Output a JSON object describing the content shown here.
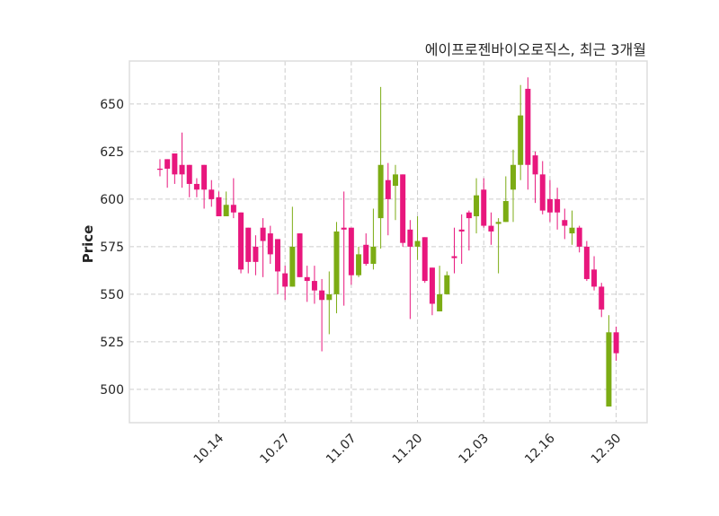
{
  "chart_data": {
    "type": "candlestick",
    "title": "에이프로젠바이오로직스, 최근 3개월",
    "xlabel": "",
    "ylabel": "Price",
    "ylim": [
      482.5,
      672.6
    ],
    "xlim": [
      -4.15,
      66.2
    ],
    "grid": true,
    "yticks": [
      500,
      525,
      550,
      575,
      600,
      625,
      650
    ],
    "xticks": [
      {
        "index": 8,
        "label": "10.14"
      },
      {
        "index": 17,
        "label": "10.27"
      },
      {
        "index": 26,
        "label": "11.07"
      },
      {
        "index": 35,
        "label": "11.20"
      },
      {
        "index": 44,
        "label": "12.03"
      },
      {
        "index": 53,
        "label": "12.16"
      },
      {
        "index": 62,
        "label": "12.30"
      }
    ],
    "colors": {
      "up": "#7cac14",
      "down": "#e8177d",
      "grid": "#cccccc",
      "frame": "#dddddd"
    },
    "ohlc": [
      [
        616,
        621,
        612,
        615.5
      ],
      [
        621,
        621,
        606,
        616
      ],
      [
        624,
        624,
        608,
        613
      ],
      [
        618,
        635,
        606,
        613
      ],
      [
        618,
        618,
        601,
        608
      ],
      [
        608,
        611,
        601,
        605
      ],
      [
        618,
        618,
        595,
        605
      ],
      [
        605,
        610,
        596,
        600
      ],
      [
        601,
        604,
        591,
        591
      ],
      [
        591,
        604,
        591,
        597
      ],
      [
        597,
        611,
        590,
        593
      ],
      [
        593,
        593,
        561,
        563
      ],
      [
        585,
        585,
        561,
        567
      ],
      [
        575,
        581,
        560,
        567
      ],
      [
        585,
        590,
        559,
        578
      ],
      [
        582,
        586,
        566,
        571
      ],
      [
        579,
        579,
        550,
        562
      ],
      [
        561,
        565,
        547,
        554
      ],
      [
        554,
        596,
        554,
        575
      ],
      [
        582,
        582,
        559,
        559
      ],
      [
        559,
        565,
        546,
        557
      ],
      [
        557,
        565,
        545,
        552
      ],
      [
        552,
        558,
        520,
        547
      ],
      [
        547,
        562,
        529,
        550
      ],
      [
        550,
        588,
        540,
        583
      ],
      [
        585,
        604,
        544,
        584
      ],
      [
        585,
        585,
        555,
        560
      ],
      [
        560,
        575,
        559,
        571
      ],
      [
        576,
        582,
        565,
        566
      ],
      [
        566,
        595,
        563,
        575
      ],
      [
        590,
        659,
        574,
        618
      ],
      [
        610,
        619,
        581,
        600
      ],
      [
        607,
        618,
        589,
        613
      ],
      [
        613,
        613,
        575,
        577
      ],
      [
        584,
        589,
        537,
        575
      ],
      [
        575,
        591,
        568,
        578
      ],
      [
        580,
        580,
        556,
        557
      ],
      [
        564,
        564,
        539,
        545
      ],
      [
        541,
        565,
        541,
        550
      ],
      [
        550,
        562,
        550,
        560
      ],
      [
        570,
        585,
        561,
        569
      ],
      [
        584,
        592,
        566,
        583
      ],
      [
        593,
        594,
        573,
        590
      ],
      [
        591,
        611,
        582,
        602
      ],
      [
        605,
        611,
        585,
        586
      ],
      [
        586,
        593,
        576,
        583
      ],
      [
        587,
        590,
        561,
        588
      ],
      [
        588,
        612,
        588,
        599
      ],
      [
        605,
        626,
        588,
        618
      ],
      [
        618,
        660,
        610,
        644
      ],
      [
        658,
        664,
        605,
        618
      ],
      [
        623,
        625,
        598,
        613
      ],
      [
        613,
        620,
        592,
        594
      ],
      [
        600,
        610,
        588,
        593
      ],
      [
        600,
        606,
        584,
        593
      ],
      [
        589,
        595,
        579,
        586
      ],
      [
        582,
        594,
        576,
        585
      ],
      [
        585,
        586,
        572,
        575
      ],
      [
        575,
        578,
        557,
        558
      ],
      [
        563,
        570,
        552,
        554
      ],
      [
        554,
        556,
        538,
        542
      ],
      [
        491,
        539,
        491,
        530
      ],
      [
        530,
        533,
        515,
        519
      ]
    ]
  }
}
